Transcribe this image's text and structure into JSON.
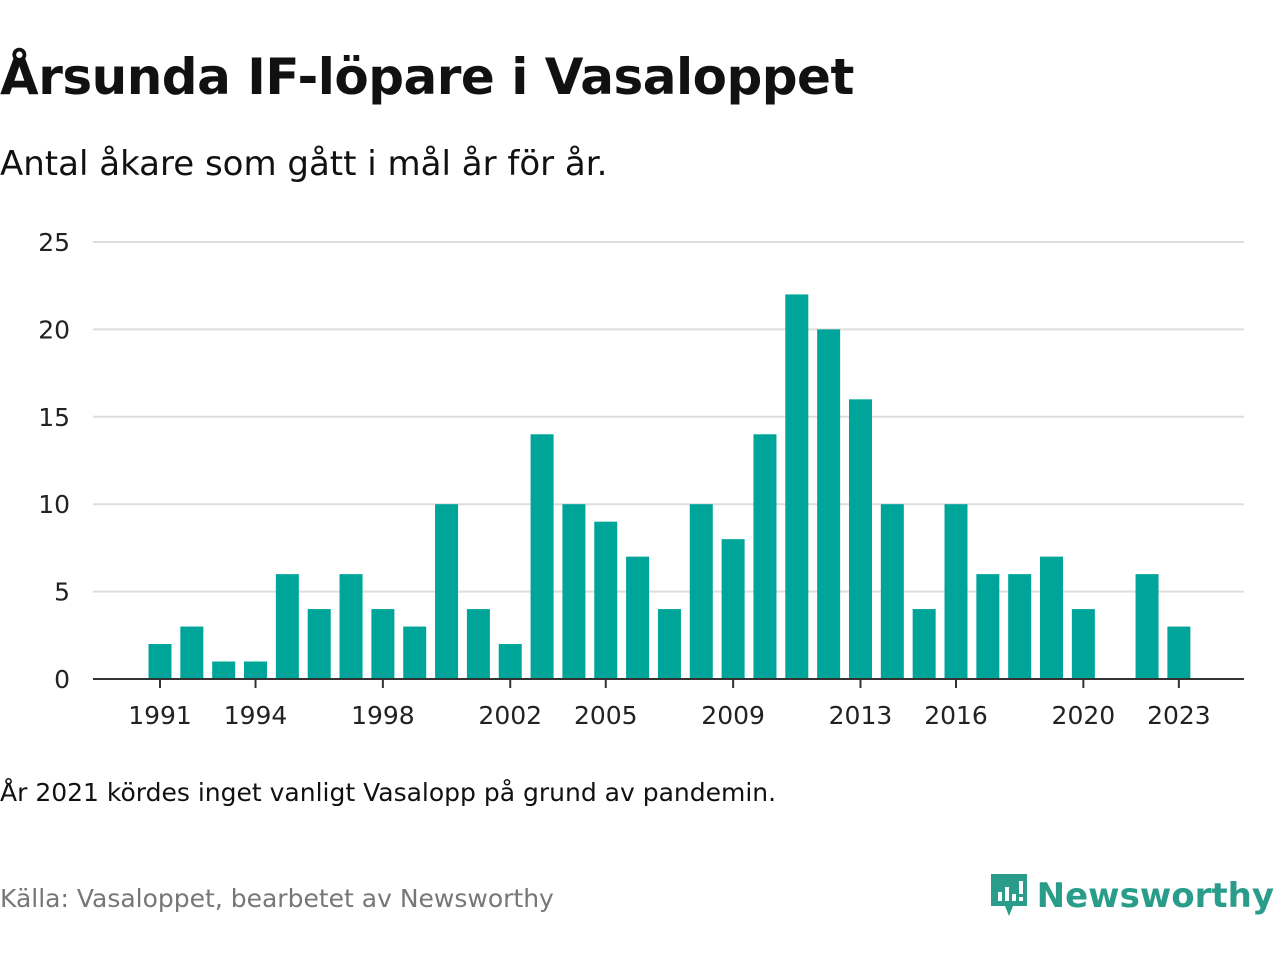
{
  "header": {
    "title": "Årsunda IF-löpare i Vasaloppet",
    "subtitle": "Antal åkare som gått i mål år för år."
  },
  "footer": {
    "note": "År 2021 kördes inget vanligt Vasalopp på grund av pandemin.",
    "source": "Källa: Vasaloppet, bearbetet av Newsworthy",
    "brand": "Newsworthy",
    "brand_icon": "newsworthy-logo-icon"
  },
  "colors": {
    "bar": "#00a599",
    "grid": "#dddddd",
    "axis": "#333333",
    "brand": "#2a9d8a"
  },
  "chart_data": {
    "type": "bar",
    "title": "Årsunda IF-löpare i Vasaloppet",
    "subtitle": "Antal åkare som gått i mål år för år.",
    "x": [
      1991,
      1992,
      1993,
      1994,
      1995,
      1996,
      1997,
      1998,
      1999,
      2000,
      2001,
      2002,
      2003,
      2004,
      2005,
      2006,
      2007,
      2008,
      2009,
      2010,
      2011,
      2012,
      2013,
      2014,
      2015,
      2016,
      2017,
      2018,
      2019,
      2020,
      2021,
      2022,
      2023
    ],
    "values": [
      2,
      3,
      1,
      1,
      6,
      4,
      6,
      4,
      3,
      10,
      4,
      2,
      14,
      10,
      9,
      7,
      4,
      10,
      8,
      14,
      22,
      20,
      16,
      10,
      4,
      10,
      6,
      6,
      7,
      4,
      null,
      6,
      3
    ],
    "x_tick_labels": [
      1991,
      1994,
      1998,
      2002,
      2005,
      2009,
      2013,
      2016,
      2020,
      2023
    ],
    "y_ticks": [
      0,
      5,
      10,
      15,
      20,
      25
    ],
    "ylim": [
      0,
      25
    ],
    "grid": true,
    "legend": "none"
  }
}
